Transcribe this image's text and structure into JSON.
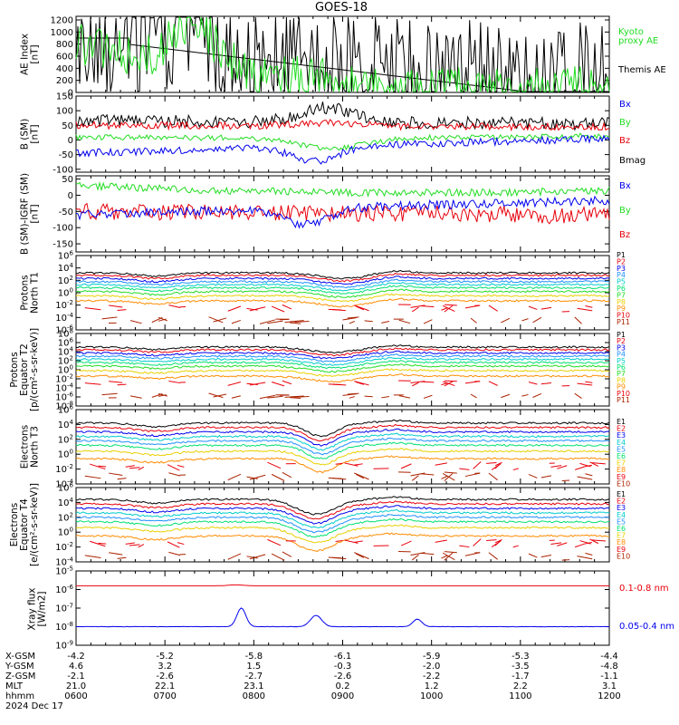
{
  "title": "GOES-18",
  "date_label": "2024 Dec 17",
  "colors": {
    "black": "#000000",
    "red": "#e8000b",
    "green": "#22dd22",
    "blue": "#0000ee",
    "orange": "#ff8c00",
    "yellow": "#e8d000",
    "cyan": "#00cccc",
    "sky": "#1e90ff",
    "violet": "#5500cc",
    "brown": "#aa2200",
    "spring": "#00e070"
  },
  "time_axis": {
    "tick_labels": [
      "0600",
      "0700",
      "0800",
      "0900",
      "1000",
      "1100",
      "1200"
    ],
    "row_labels": [
      "X-GSM",
      "Y-GSM",
      "Z-GSM",
      "MLT",
      "hhmm"
    ],
    "rows": {
      "xgsm": [
        "-4.2",
        "-5.2",
        "-5.8",
        "-6.1",
        "-5.9",
        "-5.3",
        "-4.4"
      ],
      "ygsm": [
        "4.6",
        "3.2",
        "1.5",
        "-0.3",
        "-2.0",
        "-3.5",
        "-4.8"
      ],
      "zgsm": [
        "-2.1",
        "-2.6",
        "-2.7",
        "-2.6",
        "-2.2",
        "-1.7",
        "-1.1"
      ],
      "mlt": [
        "21.0",
        "22.1",
        "23.1",
        "0.2",
        "1.2",
        "2.2",
        "3.1"
      ],
      "hhmm": [
        "0600",
        "0700",
        "0800",
        "0900",
        "1000",
        "1100",
        "1200"
      ]
    }
  },
  "panels": {
    "ae": {
      "ylabel_line1": "AE Index",
      "ylabel_line2": "[nT]",
      "ticks": [
        "1200",
        "1000",
        "800",
        "600",
        "400",
        "200",
        "0"
      ],
      "legend": [
        "Kyoto",
        "proxy AE",
        "Themis AE"
      ]
    },
    "bsm": {
      "ylabel_line1": "B (SM)",
      "ylabel_line2": "[nT]",
      "ticks": [
        "150",
        "100",
        "50",
        "0",
        "-50",
        "-100"
      ],
      "legend": [
        "Bx",
        "By",
        "Bz",
        "Bmag"
      ]
    },
    "bigrf": {
      "ylabel_line1": "B (SM)-IGRF (SM)",
      "ylabel_line2": "[nT]",
      "ticks": [
        "50",
        "0",
        "-50",
        "-100",
        "-150"
      ],
      "legend": [
        "Bx",
        "By",
        "Bz"
      ]
    },
    "pn": {
      "ylabel_line1": "Protons",
      "ylabel_line2": "North T1",
      "legend": [
        "P1",
        "P2",
        "P3",
        "P4",
        "P5",
        "P6",
        "P7",
        "P8",
        "P9",
        "P10",
        "P11"
      ]
    },
    "pe": {
      "ylabel_line1": "Protons",
      "ylabel_line2": "Equator T2",
      "ylabel_line3": "[p/(cm²-s-sr-keV)]",
      "legend": [
        "P1",
        "P2",
        "P3",
        "P4",
        "P5",
        "P6",
        "P7",
        "P8",
        "P9",
        "P10",
        "P11"
      ]
    },
    "en": {
      "ylabel_line1": "Electrons",
      "ylabel_line2": "North T3",
      "legend": [
        "E1",
        "E2",
        "E3",
        "E4",
        "E5",
        "E6",
        "E7",
        "E8",
        "E9",
        "E10"
      ]
    },
    "ee": {
      "ylabel_line1": "Electrons",
      "ylabel_line2": "Equator T4",
      "ylabel_line3": "[e/(cm²-s-sr-keV)]",
      "legend": [
        "E1",
        "E2",
        "E3",
        "E4",
        "E5",
        "E6",
        "E7",
        "E8",
        "E9",
        "E10"
      ]
    },
    "xray": {
      "ylabel_line1": "Xray flux",
      "ylabel_line2": "[W/m2]",
      "legend": [
        "0.1-0.8 nm",
        "0.05-0.4 nm"
      ]
    }
  },
  "chart_data": [
    {
      "type": "line",
      "title": "GOES-18",
      "ylabel": "AE Index [nT]",
      "ylim": [
        0,
        1200
      ],
      "x": [
        "0600",
        "0630",
        "0700",
        "0730",
        "0800",
        "0830",
        "0900",
        "0930",
        "1000",
        "1030",
        "1100",
        "1130",
        "1200"
      ],
      "series": [
        {
          "name": "Themis AE",
          "color": "#000000",
          "values": [
            850,
            750,
            500,
            700,
            400,
            450,
            250,
            200,
            300,
            250,
            250,
            150,
            200
          ]
        },
        {
          "name": "Kyoto proxy AE",
          "color": "#22dd22",
          "values": [
            900,
            600,
            400,
            800,
            250,
            200,
            100,
            100,
            120,
            100,
            100,
            80,
            100
          ]
        }
      ]
    },
    {
      "type": "line",
      "ylabel": "B (SM) [nT]",
      "ylim": [
        -110,
        150
      ],
      "x": [
        "0600",
        "0630",
        "0700",
        "0730",
        "0800",
        "0830",
        "0900",
        "0930",
        "1000",
        "1030",
        "1100",
        "1130",
        "1200"
      ],
      "series": [
        {
          "name": "Bx",
          "color": "#0000ee",
          "values": [
            -45,
            -30,
            -25,
            -30,
            -40,
            -70,
            -90,
            -40,
            -15,
            -5,
            0,
            2,
            0
          ]
        },
        {
          "name": "By",
          "color": "#22dd22",
          "values": [
            10,
            5,
            0,
            -5,
            -10,
            -30,
            -45,
            -30,
            -20,
            -10,
            -5,
            0,
            5
          ]
        },
        {
          "name": "Bz",
          "color": "#e8000b",
          "values": [
            60,
            55,
            50,
            45,
            45,
            50,
            55,
            50,
            45,
            45,
            45,
            45,
            50
          ]
        },
        {
          "name": "Bmag",
          "color": "#000000",
          "values": [
            85,
            70,
            60,
            55,
            70,
            105,
            110,
            75,
            60,
            55,
            50,
            50,
            55
          ]
        }
      ]
    },
    {
      "type": "line",
      "ylabel": "B (SM)-IGRF (SM) [nT]",
      "ylim": [
        -150,
        50
      ],
      "x": [
        "0600",
        "0630",
        "0700",
        "0730",
        "0800",
        "0830",
        "0900",
        "0930",
        "1000",
        "1030",
        "1100",
        "1130",
        "1200"
      ],
      "series": [
        {
          "name": "Bx",
          "color": "#0000ee",
          "values": [
            -70,
            -65,
            -60,
            -65,
            -75,
            -100,
            -110,
            -60,
            -40,
            -30,
            -25,
            -15,
            -10
          ]
        },
        {
          "name": "By",
          "color": "#22dd22",
          "values": [
            30,
            15,
            5,
            0,
            -10,
            -25,
            -45,
            -35,
            -25,
            -20,
            -15,
            -5,
            0
          ]
        },
        {
          "name": "Bz",
          "color": "#e8000b",
          "values": [
            -40,
            -45,
            -50,
            -55,
            -55,
            -50,
            -45,
            -50,
            -55,
            -60,
            -60,
            -55,
            -50
          ]
        }
      ]
    },
    {
      "type": "line",
      "ylabel": "Protons North T1",
      "scale": "log",
      "x": [
        "0600",
        "0800",
        "0900",
        "1000",
        "1100",
        "1200"
      ],
      "series": [
        {
          "name": "P1",
          "values": [
            2000,
            3000,
            100,
            1500,
            1500,
            2000
          ]
        },
        {
          "name": "P11",
          "values": [
            1e-05,
            1e-05,
            1e-05,
            1e-05,
            1e-05,
            1e-05
          ]
        }
      ]
    },
    {
      "type": "line",
      "ylabel": "Protons Equator T2 [p/(cm²-s-sr-keV)]",
      "scale": "log",
      "x": [
        "0600",
        "0800",
        "0900",
        "1000",
        "1100",
        "1200"
      ],
      "series": [
        {
          "name": "P1",
          "values": [
            100000,
            30000,
            5000,
            100000,
            50000,
            100000
          ]
        },
        {
          "name": "P11",
          "values": [
            1e-06,
            1e-06,
            1e-06,
            1e-06,
            1e-06,
            1e-06
          ]
        }
      ]
    },
    {
      "type": "line",
      "ylabel": "Electrons North T3",
      "scale": "log",
      "x": [
        "0600",
        "0800",
        "0900",
        "1000",
        "1100",
        "1200"
      ],
      "series": [
        {
          "name": "E1",
          "values": [
            20000,
            15000,
            500,
            20000,
            15000,
            20000
          ]
        },
        {
          "name": "E10",
          "values": [
            0.01,
            0.01,
            0.01,
            0.01,
            0.01,
            0.01
          ]
        }
      ]
    },
    {
      "type": "line",
      "ylabel": "Electrons Equator T4 [e/(cm²-s-sr-keV)]",
      "scale": "log",
      "x": [
        "0600",
        "0800",
        "0900",
        "1000",
        "1100",
        "1200"
      ],
      "series": [
        {
          "name": "E1",
          "values": [
            100000,
            20000,
            1000,
            20000,
            30000,
            100000
          ]
        },
        {
          "name": "E10",
          "values": [
            0.001,
            0.001,
            0.001,
            0.001,
            0.001,
            0.001
          ]
        }
      ]
    },
    {
      "type": "line",
      "ylabel": "Xray flux [W/m2]",
      "scale": "log",
      "x": [
        "0600",
        "0700",
        "0800",
        "0900",
        "1000",
        "1100",
        "1200"
      ],
      "series": [
        {
          "name": "0.1-0.8 nm",
          "color": "#e8000b",
          "values": [
            5e-06,
            5e-06,
            5e-06,
            5e-06,
            5e-06,
            5e-06,
            5e-06
          ]
        },
        {
          "name": "0.05-0.4 nm",
          "color": "#0000ee",
          "values": [
            1e-08,
            1e-08,
            5e-08,
            3e-08,
            1e-08,
            1e-08,
            1e-08
          ]
        }
      ]
    }
  ]
}
